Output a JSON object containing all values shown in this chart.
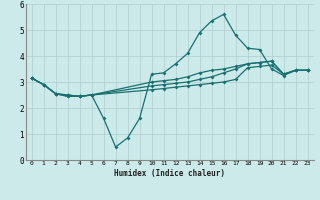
{
  "xlabel": "Humidex (Indice chaleur)",
  "bg_color": "#cceaea",
  "grid_color": "#b0cccc",
  "line_color": "#1a7070",
  "xlim": [
    -0.5,
    23.5
  ],
  "ylim": [
    0,
    6
  ],
  "xtick_labels": [
    "0",
    "1",
    "2",
    "3",
    "4",
    "5",
    "6",
    "7",
    "8",
    "9",
    "10",
    "11",
    "12",
    "13",
    "14",
    "15",
    "16",
    "17",
    "18",
    "19",
    "20",
    "21",
    "22",
    "23"
  ],
  "ytick_labels": [
    "0",
    "1",
    "2",
    "3",
    "4",
    "5",
    "6"
  ],
  "series": [
    {
      "x": [
        0,
        1,
        2,
        3,
        4,
        5,
        6,
        7,
        8,
        9,
        10,
        11,
        12,
        13,
        14,
        15,
        16,
        17,
        18,
        19,
        20,
        21,
        22,
        23
      ],
      "y": [
        3.15,
        2.9,
        2.55,
        2.5,
        2.45,
        2.5,
        1.6,
        0.5,
        0.85,
        1.6,
        3.3,
        3.35,
        3.7,
        4.1,
        4.9,
        5.35,
        5.6,
        4.8,
        4.3,
        4.25,
        3.5,
        3.25,
        3.45,
        3.45
      ]
    },
    {
      "x": [
        0,
        1,
        2,
        3,
        4,
        5,
        10,
        11,
        12,
        13,
        14,
        15,
        16,
        17,
        18,
        19,
        20,
        21,
        22,
        23
      ],
      "y": [
        3.15,
        2.9,
        2.55,
        2.5,
        2.45,
        2.5,
        2.7,
        2.75,
        2.8,
        2.85,
        2.9,
        2.95,
        3.0,
        3.1,
        3.55,
        3.6,
        3.65,
        3.3,
        3.45,
        3.45
      ]
    },
    {
      "x": [
        0,
        1,
        2,
        3,
        4,
        5,
        10,
        11,
        12,
        13,
        14,
        15,
        16,
        17,
        18,
        19,
        20,
        21,
        22,
        23
      ],
      "y": [
        3.15,
        2.9,
        2.55,
        2.45,
        2.45,
        2.5,
        2.85,
        2.9,
        2.95,
        3.0,
        3.1,
        3.2,
        3.35,
        3.5,
        3.7,
        3.75,
        3.8,
        3.3,
        3.45,
        3.45
      ]
    },
    {
      "x": [
        0,
        1,
        2,
        3,
        4,
        5,
        10,
        11,
        12,
        13,
        14,
        15,
        16,
        17,
        18,
        19,
        20,
        21,
        22,
        23
      ],
      "y": [
        3.15,
        2.9,
        2.55,
        2.45,
        2.45,
        2.5,
        3.0,
        3.05,
        3.1,
        3.2,
        3.35,
        3.45,
        3.5,
        3.6,
        3.7,
        3.75,
        3.8,
        3.3,
        3.45,
        3.45
      ]
    }
  ]
}
